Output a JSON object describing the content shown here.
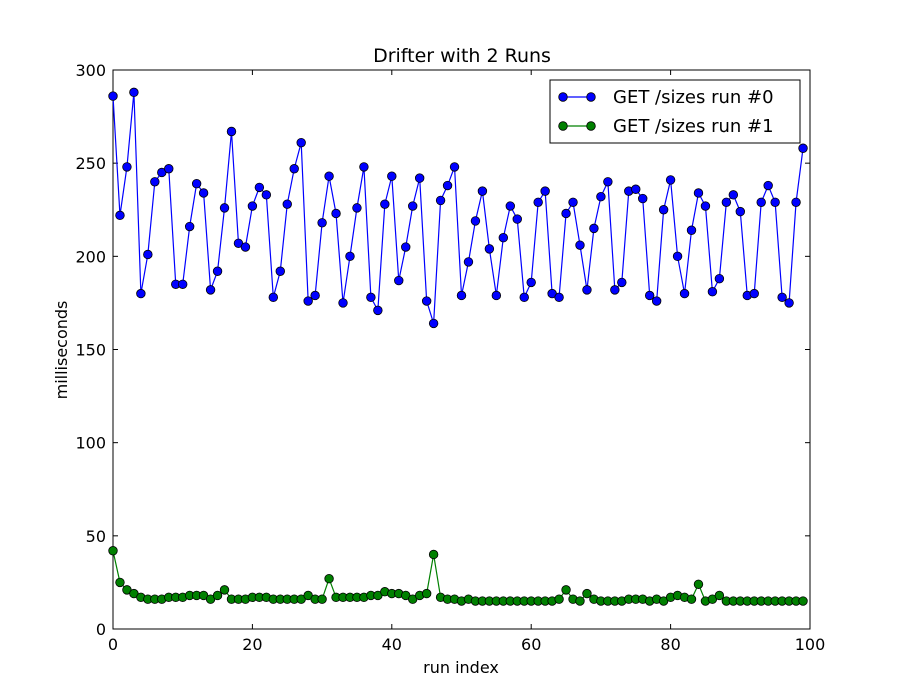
{
  "chart_data": {
    "type": "line",
    "title": "Drifter with 2 Runs",
    "xlabel": "run index",
    "ylabel": "milliseconds",
    "xlim": [
      0,
      100
    ],
    "ylim": [
      0,
      300
    ],
    "xticks": [
      0,
      20,
      40,
      60,
      80,
      100
    ],
    "yticks": [
      0,
      50,
      100,
      150,
      200,
      250,
      300
    ],
    "grid": false,
    "legend_position": "top-right",
    "x": [
      0,
      1,
      2,
      3,
      4,
      5,
      6,
      7,
      8,
      9,
      10,
      11,
      12,
      13,
      14,
      15,
      16,
      17,
      18,
      19,
      20,
      21,
      22,
      23,
      24,
      25,
      26,
      27,
      28,
      29,
      30,
      31,
      32,
      33,
      34,
      35,
      36,
      37,
      38,
      39,
      40,
      41,
      42,
      43,
      44,
      45,
      46,
      47,
      48,
      49,
      50,
      51,
      52,
      53,
      54,
      55,
      56,
      57,
      58,
      59,
      60,
      61,
      62,
      63,
      64,
      65,
      66,
      67,
      68,
      69,
      70,
      71,
      72,
      73,
      74,
      75,
      76,
      77,
      78,
      79,
      80,
      81,
      82,
      83,
      84,
      85,
      86,
      87,
      88,
      89,
      90,
      91,
      92,
      93,
      94,
      95,
      96,
      97,
      98,
      99
    ],
    "series": [
      {
        "name": "GET /sizes run #0",
        "color": "#0000ff",
        "values": [
          286,
          222,
          248,
          288,
          180,
          201,
          240,
          245,
          247,
          185,
          185,
          216,
          239,
          234,
          182,
          192,
          226,
          267,
          207,
          205,
          227,
          237,
          233,
          178,
          192,
          228,
          247,
          261,
          176,
          179,
          218,
          243,
          223,
          175,
          200,
          226,
          248,
          178,
          171,
          228,
          243,
          187,
          205,
          227,
          242,
          176,
          164,
          230,
          238,
          248,
          179,
          197,
          219,
          235,
          204,
          179,
          210,
          227,
          220,
          178,
          186,
          229,
          235,
          180,
          178,
          223,
          229,
          206,
          182,
          215,
          232,
          240,
          182,
          186,
          235,
          236,
          231,
          179,
          176,
          225,
          241,
          200,
          180,
          214,
          234,
          227,
          181,
          188,
          229,
          233,
          224,
          179,
          180,
          229,
          238,
          229,
          178,
          175,
          229,
          258
        ]
      },
      {
        "name": "GET /sizes run #1",
        "color": "#008000",
        "values": [
          42,
          25,
          21,
          19,
          17,
          16,
          16,
          16,
          17,
          17,
          17,
          18,
          18,
          18,
          16,
          18,
          21,
          16,
          16,
          16,
          17,
          17,
          17,
          16,
          16,
          16,
          16,
          16,
          18,
          16,
          16,
          27,
          17,
          17,
          17,
          17,
          17,
          18,
          18,
          20,
          19,
          19,
          18,
          16,
          18,
          19,
          40,
          17,
          16,
          16,
          15,
          16,
          15,
          15,
          15,
          15,
          15,
          15,
          15,
          15,
          15,
          15,
          15,
          15,
          16,
          21,
          16,
          15,
          19,
          16,
          15,
          15,
          15,
          15,
          16,
          16,
          16,
          15,
          16,
          15,
          17,
          18,
          17,
          16,
          24,
          15,
          16,
          18,
          15,
          15,
          15,
          15,
          15,
          15,
          15,
          15,
          15,
          15,
          15,
          15
        ]
      }
    ]
  }
}
